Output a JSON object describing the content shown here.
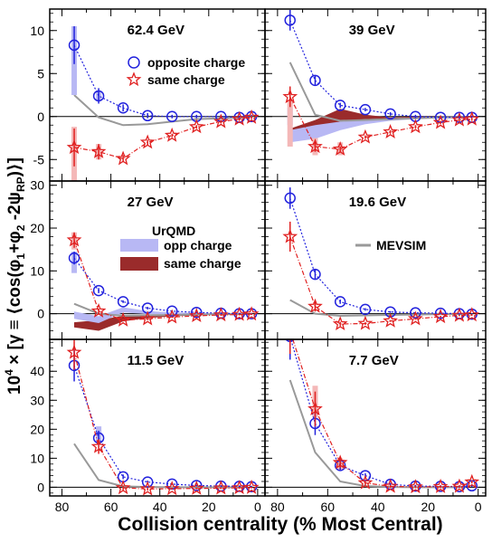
{
  "figure": {
    "xlabel": "Collision centrality (% Most Central)",
    "ylabel_prefix": "10",
    "ylabel_exp": "4",
    "ylabel_body": " × [γ ≡ ⟨cos(φ",
    "ylabel_parts": [
      "10",
      "4",
      " × [γ ≡ ⟨cos(φ",
      "1",
      "+φ",
      "2",
      " -2ψ",
      "RP",
      ")⟩]"
    ],
    "legend_markers": {
      "opposite": "opposite charge",
      "same": "same charge"
    },
    "legend_urqmd": {
      "title": "UrQMD",
      "opp": "opp charge",
      "same": "same charge"
    },
    "legend_mevsim": "MEVSIM"
  },
  "colors": {
    "opposite": "#2222dd",
    "same": "#e02020",
    "urqmd_opp": "#b8b8f4",
    "urqmd_same": "#9a2b2b",
    "mevsim": "#999999",
    "sys_opp": "#b8b8f4",
    "sys_same": "#f4b8b8"
  },
  "chart_data": [
    {
      "type": "scatter",
      "title": "62.4 GeV",
      "xlim": [
        85,
        -3
      ],
      "ylim": [
        -7.5,
        12.5
      ],
      "yticks": [
        -5,
        0,
        5,
        10
      ],
      "x": [
        75,
        65,
        55,
        45,
        35,
        25,
        15,
        7.5,
        2.5
      ],
      "series": [
        {
          "name": "opposite charge",
          "values": [
            8.3,
            2.4,
            1.0,
            0.1,
            0.0,
            0.0,
            0.0,
            -0.1,
            0.0
          ],
          "err": [
            2.2,
            0.9,
            0.4,
            0.3,
            0.2,
            0.2,
            0.2,
            0.2,
            0.2
          ]
        },
        {
          "name": "same charge",
          "values": [
            -3.6,
            -4.1,
            -4.9,
            -3.0,
            -2.2,
            -1.2,
            -0.6,
            -0.3,
            -0.1
          ],
          "err": [
            2.2,
            0.9,
            0.4,
            0.3,
            0.2,
            0.2,
            0.2,
            0.2,
            0.2
          ]
        }
      ],
      "sys_opp": [
        [
          75,
          2.5,
          10.5
        ],
        [
          65,
          1.8,
          3.0
        ]
      ],
      "sys_same": [
        [
          75,
          -8.0,
          -1.2
        ],
        [
          65,
          -5.0,
          -3.2
        ]
      ],
      "mevsim": {
        "x": [
          75,
          65,
          55,
          45,
          35,
          25,
          15,
          5
        ],
        "y": [
          2.5,
          -0.1,
          -1.0,
          -0.9,
          -0.6,
          -0.3,
          -0.2,
          -0.1
        ]
      },
      "urqmd_opp": null,
      "urqmd_same": null
    },
    {
      "type": "scatter",
      "title": "39 GeV",
      "xlim": [
        85,
        -3
      ],
      "ylim": [
        -7.5,
        12.5
      ],
      "yticks": [
        -5,
        0,
        5,
        10
      ],
      "x": [
        75,
        65,
        55,
        45,
        35,
        25,
        15,
        7.5,
        2.5
      ],
      "series": [
        {
          "name": "opposite charge",
          "values": [
            11.2,
            4.2,
            1.3,
            0.8,
            0.3,
            0.0,
            -0.1,
            -0.1,
            -0.1
          ],
          "err": [
            1.2,
            0.6,
            0.3,
            0.2,
            0.2,
            0.2,
            0.2,
            0.2,
            0.2
          ]
        },
        {
          "name": "same charge",
          "values": [
            2.3,
            -3.5,
            -3.8,
            -2.4,
            -1.8,
            -1.2,
            -0.7,
            -0.4,
            -0.3
          ],
          "err": [
            1.2,
            0.6,
            0.3,
            0.2,
            0.2,
            0.2,
            0.2,
            0.2,
            0.2
          ]
        }
      ],
      "sys_opp": [
        [
          75,
          -1.0,
          1.0
        ]
      ],
      "sys_same": [
        [
          75,
          -3.5,
          1.8
        ],
        [
          65,
          -4.5,
          -2.5
        ],
        [
          55,
          -4.5,
          -3.0
        ]
      ],
      "mevsim": {
        "x": [
          75,
          65,
          55,
          45,
          35,
          25,
          15,
          5
        ],
        "y": [
          6.3,
          0.2,
          -0.5,
          -0.4,
          -0.3,
          -0.2,
          -0.1,
          -0.1
        ]
      },
      "urqmd_opp": {
        "x": [
          75,
          65,
          55,
          45,
          35,
          25,
          15,
          5
        ],
        "lo": [
          -3.0,
          -2.6,
          -1.6,
          -0.9,
          -0.5,
          -0.3,
          -0.2,
          -0.1
        ],
        "hi": [
          -1.6,
          -1.0,
          -0.6,
          -0.3,
          -0.2,
          -0.1,
          0.0,
          0.0
        ]
      },
      "urqmd_same": {
        "x": [
          75,
          65,
          55,
          45,
          35,
          25,
          15,
          5
        ],
        "lo": [
          -2.2,
          -1.6,
          -0.6,
          -0.4,
          -0.3,
          -0.2,
          -0.1,
          -0.1
        ],
        "hi": [
          -1.4,
          -0.4,
          0.9,
          0.2,
          -0.1,
          0.0,
          0.0,
          0.0
        ]
      }
    },
    {
      "type": "scatter",
      "title": "27 GeV",
      "xlim": [
        85,
        -3
      ],
      "ylim": [
        -6,
        31
      ],
      "yticks": [
        0,
        10,
        20,
        30
      ],
      "x": [
        75,
        65,
        55,
        45,
        35,
        25,
        15,
        7.5,
        2.5
      ],
      "series": [
        {
          "name": "opposite charge",
          "values": [
            13.0,
            5.4,
            2.8,
            1.3,
            0.6,
            0.3,
            0.1,
            0.0,
            0.0
          ],
          "err": [
            1.5,
            0.6,
            0.3,
            0.3,
            0.2,
            0.2,
            0.2,
            0.2,
            0.2
          ]
        },
        {
          "name": "same charge",
          "values": [
            17.2,
            0.6,
            -1.5,
            -1.2,
            -0.8,
            -0.5,
            -0.3,
            -0.2,
            -0.1
          ],
          "err": [
            1.8,
            0.6,
            0.3,
            0.3,
            0.2,
            0.2,
            0.2,
            0.2,
            0.2
          ]
        }
      ],
      "sys_opp": [
        [
          75,
          9.5,
          14.5
        ]
      ],
      "sys_same": [
        [
          75,
          15.0,
          19.0
        ]
      ],
      "mevsim": {
        "x": [
          75,
          65,
          55,
          45,
          35,
          25,
          15,
          5
        ],
        "y": [
          2.3,
          0.0,
          -0.5,
          -0.4,
          -0.3,
          -0.2,
          -0.1,
          -0.1
        ]
      },
      "urqmd_opp": {
        "x": [
          75,
          65,
          55,
          45,
          35,
          25,
          15,
          5
        ],
        "lo": [
          -1.2,
          -2.2,
          0.3,
          -0.1,
          -0.1,
          0.0,
          0.0,
          0.0
        ],
        "hi": [
          0.5,
          -0.6,
          1.5,
          0.6,
          0.3,
          0.2,
          0.1,
          0.1
        ]
      },
      "urqmd_same": {
        "x": [
          75,
          65,
          55,
          45,
          35,
          25,
          15,
          5
        ],
        "lo": [
          -3.2,
          -4.0,
          -1.8,
          -1.0,
          -0.6,
          -0.4,
          -0.2,
          -0.1
        ],
        "hi": [
          -2.0,
          -1.5,
          -0.5,
          -0.3,
          -0.2,
          -0.1,
          -0.1,
          0.0
        ]
      }
    },
    {
      "type": "scatter",
      "title": "19.6 GeV",
      "xlim": [
        85,
        -3
      ],
      "ylim": [
        -6,
        31
      ],
      "yticks": [
        0,
        10,
        20,
        30
      ],
      "x": [
        75,
        65,
        55,
        45,
        35,
        25,
        15,
        7.5,
        2.5
      ],
      "series": [
        {
          "name": "opposite charge",
          "values": [
            27.0,
            9.2,
            2.8,
            1.0,
            0.4,
            0.2,
            0.1,
            0.0,
            -0.1
          ],
          "err": [
            2.5,
            1.2,
            0.5,
            0.3,
            0.2,
            0.2,
            0.2,
            0.2,
            0.2
          ]
        },
        {
          "name": "same charge",
          "values": [
            18.0,
            1.7,
            -2.4,
            -2.3,
            -1.7,
            -1.2,
            -0.7,
            -0.4,
            -0.3
          ],
          "err": [
            3.5,
            1.2,
            0.5,
            0.3,
            0.2,
            0.2,
            0.2,
            0.2,
            0.2
          ]
        }
      ],
      "sys_opp": [],
      "sys_same": [],
      "mevsim": {
        "x": [
          75,
          65,
          55,
          45,
          35,
          25,
          15,
          5
        ],
        "y": [
          3.2,
          0.0,
          -0.5,
          -0.4,
          -0.3,
          -0.2,
          -0.1,
          -0.1
        ]
      },
      "urqmd_opp": null,
      "urqmd_same": null
    },
    {
      "type": "scatter",
      "title": "11.5 GeV",
      "xlim": [
        85,
        -3
      ],
      "ylim": [
        -3,
        51
      ],
      "yticks": [
        0,
        10,
        20,
        30,
        40
      ],
      "x": [
        75,
        65,
        55,
        45,
        35,
        25,
        15,
        7.5,
        2.5
      ],
      "series": [
        {
          "name": "opposite charge",
          "values": [
            42.0,
            17.0,
            3.6,
            1.8,
            1.1,
            0.6,
            0.4,
            0.3,
            0.2
          ],
          "err": [
            5.5,
            2.5,
            0.8,
            0.5,
            0.3,
            0.3,
            0.3,
            0.3,
            0.3
          ]
        },
        {
          "name": "same charge",
          "values": [
            46.5,
            14.0,
            -0.2,
            -0.6,
            -0.5,
            -0.4,
            -0.3,
            -0.2,
            -0.1
          ],
          "err": [
            6.0,
            2.5,
            0.8,
            0.5,
            0.3,
            0.3,
            0.3,
            0.3,
            0.3
          ]
        }
      ],
      "sys_opp": [
        [
          65,
          15.5,
          21.0
        ]
      ],
      "sys_same": [],
      "mevsim": {
        "x": [
          75,
          65,
          55,
          45,
          35,
          25,
          15,
          5
        ],
        "y": [
          15.0,
          2.5,
          0.3,
          0.1,
          0.0,
          0.0,
          0.0,
          0.0
        ]
      },
      "urqmd_opp": null,
      "urqmd_same": null
    },
    {
      "type": "scatter",
      "title": "7.7 GeV",
      "xlim": [
        85,
        -3
      ],
      "ylim": [
        -3,
        51
      ],
      "yticks": [
        0,
        10,
        20,
        30,
        40
      ],
      "x": [
        75,
        65,
        55,
        45,
        35,
        25,
        15,
        7.5,
        2.5
      ],
      "series": [
        {
          "name": "opposite charge",
          "values": [
            52.0,
            22.0,
            7.5,
            4.0,
            1.0,
            0.4,
            0.3,
            0.2,
            0.5
          ],
          "err": [
            8.0,
            4.0,
            1.5,
            0.8,
            0.5,
            0.4,
            0.4,
            0.4,
            0.4
          ]
        },
        {
          "name": "same charge",
          "values": [
            54.0,
            27.0,
            8.5,
            1.5,
            0.3,
            0.1,
            0.2,
            0.3,
            1.8
          ],
          "err": [
            8.0,
            6.0,
            1.8,
            0.8,
            0.5,
            0.4,
            0.4,
            0.4,
            0.5
          ]
        }
      ],
      "sys_opp": [],
      "sys_same": [
        [
          65,
          24.0,
          35.0
        ],
        [
          55,
          6.0,
          10.0
        ]
      ],
      "mevsim": {
        "x": [
          75,
          65,
          55,
          45,
          35,
          25,
          15,
          5
        ],
        "y": [
          37.0,
          12.0,
          2.0,
          0.4,
          0.1,
          0.0,
          0.0,
          0.0
        ]
      },
      "urqmd_opp": null,
      "urqmd_same": null
    }
  ]
}
